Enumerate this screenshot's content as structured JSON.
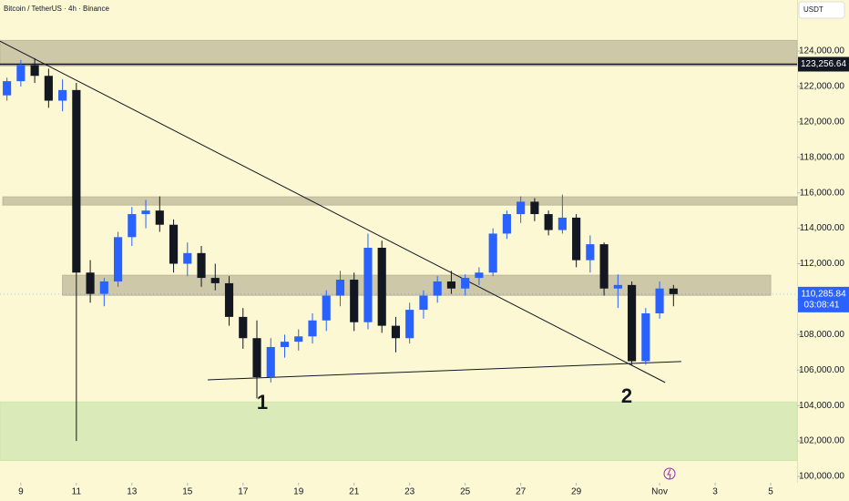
{
  "chart_data": {
    "type": "candlestick",
    "title": "Bitcoin / TetherUS · 4h · Binance",
    "currency": "USDT",
    "x": [
      8.5,
      9,
      9.5,
      10,
      10.5,
      11,
      11.5,
      12,
      12.5,
      13,
      13.5,
      14,
      14.5,
      15,
      15.5,
      16,
      16.5,
      17,
      17.5,
      18,
      18.5,
      19,
      19.5,
      20,
      20.5,
      21,
      21.5,
      22,
      22.5,
      23,
      23.5,
      24,
      24.5,
      25,
      25.5,
      26,
      26.5,
      27,
      27.5,
      28,
      28.5,
      29,
      29.5,
      30,
      30.5,
      31,
      31.5,
      32,
      32.5
    ],
    "open": [
      121500,
      122300,
      123200,
      122600,
      121200,
      121800,
      111500,
      110300,
      111000,
      113500,
      114800,
      115000,
      114200,
      112000,
      112600,
      111200,
      110900,
      109000,
      107800,
      105600,
      107300,
      107600,
      107900,
      108800,
      110200,
      111100,
      108700,
      112900,
      108500,
      107800,
      109400,
      110200,
      111000,
      110600,
      111200,
      111500,
      113700,
      114800,
      115500,
      114800,
      113900,
      114600,
      112200,
      113100,
      110600,
      110800,
      106500,
      109200,
      110600
    ],
    "high": [
      122500,
      123500,
      123600,
      123000,
      122400,
      122200,
      112200,
      111200,
      113800,
      115200,
      115600,
      115800,
      114500,
      113200,
      113000,
      112000,
      111300,
      109500,
      108800,
      107800,
      108000,
      108300,
      109200,
      110500,
      111600,
      111500,
      113700,
      113300,
      109000,
      109800,
      110500,
      111300,
      111600,
      111400,
      111800,
      114000,
      115000,
      115800,
      115700,
      115000,
      115900,
      114800,
      113600,
      113200,
      111400,
      111000,
      109500,
      111000,
      110800
    ],
    "low": [
      121200,
      122000,
      122200,
      120800,
      120600,
      102000,
      109800,
      109600,
      110700,
      113000,
      114000,
      113800,
      111500,
      111300,
      110700,
      110500,
      108500,
      107200,
      104400,
      105300,
      106700,
      107100,
      107500,
      108200,
      109600,
      108200,
      108300,
      108100,
      107000,
      107500,
      108900,
      109800,
      110300,
      110200,
      110800,
      111300,
      113400,
      114300,
      114400,
      113600,
      113700,
      111800,
      111500,
      110200,
      109500,
      106300,
      106300,
      108900,
      109600
    ],
    "close": [
      122300,
      123200,
      122600,
      121200,
      121800,
      111500,
      110300,
      111000,
      113500,
      114800,
      115000,
      114200,
      112000,
      112600,
      111200,
      110900,
      109000,
      107800,
      105600,
      107300,
      107600,
      107900,
      108800,
      110200,
      111100,
      108700,
      112900,
      108500,
      107800,
      109400,
      110200,
      111000,
      110600,
      111200,
      111500,
      113700,
      114800,
      115500,
      114800,
      113900,
      114600,
      112200,
      113100,
      110600,
      110800,
      106500,
      109200,
      110600,
      110285.84
    ],
    "up_color": "#2962ff",
    "down_color": "#131722",
    "xlim": [
      8.25,
      36.95
    ],
    "xticks": [
      9,
      11,
      13,
      15,
      17,
      19,
      21,
      23,
      25,
      27,
      29,
      {
        "value": 32,
        "label": "Nov"
      },
      {
        "value": 34,
        "label": "3"
      },
      {
        "value": 36,
        "label": "5"
      }
    ],
    "ylim": [
      99640,
      126880
    ],
    "yticks": [
      {
        "value": 100000,
        "label": "100,000.00"
      },
      {
        "value": 102000,
        "label": "102,000.00"
      },
      {
        "value": 104000,
        "label": "104,000.00"
      },
      {
        "value": 106000,
        "label": "106,000.00"
      },
      {
        "value": 108000,
        "label": "108,000.00"
      },
      {
        "value": 110000,
        "label": "110,000.00"
      },
      {
        "value": 112000,
        "label": "112,000.00"
      },
      {
        "value": 114000,
        "label": "114,000.00"
      },
      {
        "value": 116000,
        "label": "116,000.00"
      },
      {
        "value": 118000,
        "label": "118,000.00"
      },
      {
        "value": 120000,
        "label": "120,000.00"
      },
      {
        "value": 122000,
        "label": "122,000.00"
      },
      {
        "value": 124000,
        "label": "124,000.00"
      }
    ],
    "zones": [
      {
        "x": [
          8.25,
          36.95
        ],
        "y": [
          123160,
          124600
        ],
        "color": "#bdb89a"
      },
      {
        "x": [
          8.35,
          36.95
        ],
        "y": [
          115310,
          115770
        ],
        "color": "#bdb89a"
      },
      {
        "x": [
          10.5,
          36.0
        ],
        "y": [
          110220,
          111350
        ],
        "color": "#bdb89a"
      },
      {
        "x": [
          8.25,
          36.95
        ],
        "y": [
          100900,
          104200
        ],
        "color": "#cfe6b0"
      }
    ],
    "lines": [
      {
        "x": [
          8.25,
          32.2
        ],
        "y": [
          124560,
          105300
        ]
      },
      {
        "x": [
          15.73,
          32.78
        ],
        "y": [
          105450,
          106480
        ]
      }
    ],
    "annotations": [
      "1",
      "2"
    ],
    "price_line": {
      "value": 123256.64,
      "label": "123,256.64"
    },
    "last_price": {
      "value": 110285.84,
      "label": "110,285.84",
      "countdown": "03:08:41"
    }
  }
}
